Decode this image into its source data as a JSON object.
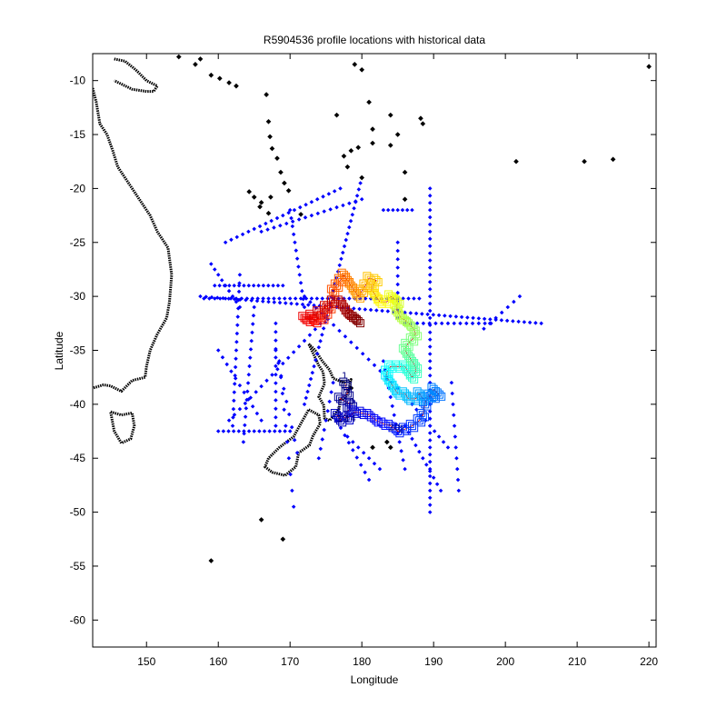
{
  "chart_data": {
    "type": "scatter",
    "title": "R5904536 profile locations with historical data",
    "xlabel": "Longitude",
    "ylabel": "Latitude",
    "xlim": [
      142.5,
      221
    ],
    "ylim": [
      -62.5,
      -7.5
    ],
    "x_ticks": [
      150,
      160,
      170,
      180,
      190,
      200,
      210,
      220
    ],
    "y_ticks": [
      -10,
      -15,
      -20,
      -25,
      -30,
      -35,
      -40,
      -45,
      -50,
      -55,
      -60
    ],
    "grid": false,
    "legend": "none",
    "colors": {
      "coast": "#000000",
      "historical": "#0000ff",
      "track_start": "#00008f",
      "track_end": "#800000"
    },
    "coastline": [
      [
        [
          145.5,
          -8
        ],
        [
          147,
          -8.2
        ],
        [
          148.5,
          -9
        ],
        [
          150,
          -10
        ],
        [
          151.5,
          -10.5
        ],
        [
          151,
          -11
        ],
        [
          150,
          -11
        ],
        [
          148,
          -10.8
        ],
        [
          145.5,
          -10
        ]
      ],
      [
        [
          142.5,
          -10.7
        ],
        [
          143,
          -12
        ],
        [
          143.5,
          -14
        ],
        [
          144.5,
          -15
        ],
        [
          145.3,
          -16.5
        ],
        [
          146,
          -18
        ],
        [
          147.5,
          -19.5
        ],
        [
          149,
          -21
        ],
        [
          150.5,
          -22.5
        ],
        [
          151.5,
          -24
        ],
        [
          153,
          -25.5
        ],
        [
          153.5,
          -28
        ],
        [
          153.2,
          -30.5
        ],
        [
          152.8,
          -32
        ],
        [
          151.5,
          -33.5
        ],
        [
          150.5,
          -35
        ],
        [
          150,
          -36.5
        ],
        [
          149.8,
          -37.5
        ],
        [
          148,
          -37.8
        ],
        [
          146.5,
          -38.8
        ],
        [
          145,
          -38.3
        ],
        [
          144,
          -38.2
        ],
        [
          142.5,
          -38.5
        ]
      ],
      [
        [
          145,
          -40.7
        ],
        [
          146.5,
          -41
        ],
        [
          148,
          -40.8
        ],
        [
          148.3,
          -42
        ],
        [
          147.8,
          -43.2
        ],
        [
          146.5,
          -43.6
        ],
        [
          145.5,
          -42.5
        ],
        [
          145,
          -40.7
        ]
      ],
      [
        [
          172.6,
          -34.4
        ],
        [
          173.5,
          -35
        ],
        [
          174.5,
          -36
        ],
        [
          175.5,
          -36.8
        ],
        [
          176,
          -37.6
        ],
        [
          177.5,
          -38
        ],
        [
          178.5,
          -37.7
        ],
        [
          178,
          -39.2
        ],
        [
          177,
          -39.6
        ],
        [
          176.8,
          -40.5
        ],
        [
          175.5,
          -41.5
        ],
        [
          174.8,
          -41.3
        ],
        [
          174.7,
          -40.1
        ],
        [
          174,
          -39.3
        ],
        [
          174.8,
          -38.1
        ],
        [
          174.6,
          -37
        ],
        [
          174,
          -36.4
        ],
        [
          172.6,
          -34.4
        ]
      ],
      [
        [
          172.6,
          -40.5
        ],
        [
          174,
          -41
        ],
        [
          174.2,
          -41.8
        ],
        [
          173.2,
          -42.9
        ],
        [
          172.7,
          -43.8
        ],
        [
          171.2,
          -44.5
        ],
        [
          170.8,
          -45.8
        ],
        [
          169.3,
          -46.6
        ],
        [
          167.5,
          -46.3
        ],
        [
          166.5,
          -45.8
        ],
        [
          167,
          -45
        ],
        [
          168.5,
          -44
        ],
        [
          170.5,
          -43
        ],
        [
          171.5,
          -41.8
        ],
        [
          172.6,
          -40.5
        ]
      ]
    ],
    "islands": [
      [
        159,
        -9.5
      ],
      [
        160.2,
        -9.8
      ],
      [
        161.5,
        -10.2
      ],
      [
        157.5,
        -8
      ],
      [
        156.8,
        -8.5
      ],
      [
        154.5,
        -7.8
      ],
      [
        162.5,
        -10.5
      ],
      [
        166.7,
        -11.3
      ],
      [
        167,
        -13.8
      ],
      [
        167.2,
        -15.2
      ],
      [
        167.5,
        -16.3
      ],
      [
        168.2,
        -17.2
      ],
      [
        168.7,
        -18.5
      ],
      [
        169.2,
        -19.5
      ],
      [
        169.8,
        -20.2
      ],
      [
        167.3,
        -20.8
      ],
      [
        166,
        -21.3
      ],
      [
        165,
        -20.8
      ],
      [
        164.3,
        -20.3
      ],
      [
        165.8,
        -21.7
      ],
      [
        167,
        -22.3
      ],
      [
        171.5,
        -22.4
      ],
      [
        177.5,
        -17
      ],
      [
        178.5,
        -16.5
      ],
      [
        179.5,
        -16.2
      ],
      [
        178,
        -18
      ],
      [
        180,
        -19
      ],
      [
        181.5,
        -15.8
      ],
      [
        184,
        -16
      ],
      [
        185,
        -15
      ],
      [
        186,
        -18.5
      ],
      [
        186,
        -21
      ],
      [
        188.5,
        -14
      ],
      [
        188.2,
        -13.5
      ],
      [
        184,
        -13.2
      ],
      [
        176.5,
        -13.2
      ],
      [
        181,
        -12
      ],
      [
        181.5,
        -14.5
      ],
      [
        179,
        -8.5
      ],
      [
        180,
        -9
      ],
      [
        201.5,
        -17.5
      ],
      [
        211,
        -17.5
      ],
      [
        215,
        -17.3
      ],
      [
        220,
        -8.7
      ],
      [
        178.5,
        -38.5
      ],
      [
        181.5,
        -44
      ],
      [
        184,
        -44
      ],
      [
        183.5,
        -43.5
      ],
      [
        166,
        -50.7
      ],
      [
        169,
        -52.5
      ],
      [
        159,
        -54.5
      ]
    ],
    "historical_lines": [
      {
        "from": [
          157.5,
          -30
        ],
        "to": [
          205,
          -32.5
        ],
        "n": 60
      },
      {
        "from": [
          158,
          -30.2
        ],
        "to": [
          188,
          -30.2
        ],
        "n": 40
      },
      {
        "from": [
          179.8,
          -19.5
        ],
        "to": [
          172,
          -40
        ],
        "n": 35
      },
      {
        "from": [
          189.5,
          -20
        ],
        "to": [
          189.5,
          -50
        ],
        "n": 45
      },
      {
        "from": [
          161,
          -25
        ],
        "to": [
          177,
          -20
        ],
        "n": 20
      },
      {
        "from": [
          163,
          -28
        ],
        "to": [
          162,
          -42
        ],
        "n": 18
      },
      {
        "from": [
          165,
          -31
        ],
        "to": [
          163.5,
          -43.5
        ],
        "n": 16
      },
      {
        "from": [
          168,
          -32.5
        ],
        "to": [
          168,
          -42
        ],
        "n": 12
      },
      {
        "from": [
          170,
          -22
        ],
        "to": [
          172,
          -31
        ],
        "n": 12
      },
      {
        "from": [
          160,
          -35
        ],
        "to": [
          166,
          -41.5
        ],
        "n": 10
      },
      {
        "from": [
          161.5,
          -41.5
        ],
        "to": [
          175,
          -32
        ],
        "n": 18
      },
      {
        "from": [
          160,
          -42.5
        ],
        "to": [
          170,
          -42.5
        ],
        "n": 14
      },
      {
        "from": [
          159,
          -27
        ],
        "to": [
          163,
          -31
        ],
        "n": 8
      },
      {
        "from": [
          159.5,
          -29
        ],
        "to": [
          169,
          -29
        ],
        "n": 14
      },
      {
        "from": [
          166,
          -24
        ],
        "to": [
          180,
          -21
        ],
        "n": 16
      },
      {
        "from": [
          172,
          -30
        ],
        "to": [
          185,
          -38.5
        ],
        "n": 16
      },
      {
        "from": [
          183,
          -22
        ],
        "to": [
          187,
          -22
        ],
        "n": 6
      },
      {
        "from": [
          185,
          -25
        ],
        "to": [
          185,
          -32
        ],
        "n": 9
      },
      {
        "from": [
          186,
          -32.5
        ],
        "to": [
          198,
          -32.5
        ],
        "n": 14
      },
      {
        "from": [
          187,
          -40
        ],
        "to": [
          192,
          -44
        ],
        "n": 8
      },
      {
        "from": [
          183,
          -36
        ],
        "to": [
          186,
          -46
        ],
        "n": 12
      },
      {
        "from": [
          186,
          -42
        ],
        "to": [
          191,
          -48
        ],
        "n": 10
      },
      {
        "from": [
          192.5,
          -38
        ],
        "to": [
          193.5,
          -48
        ],
        "n": 10
      },
      {
        "from": [
          176.5,
          -41.5
        ],
        "to": [
          181,
          -47
        ],
        "n": 8
      },
      {
        "from": [
          178,
          -43
        ],
        "to": [
          182.5,
          -46
        ],
        "n": 6
      },
      {
        "from": [
          176,
          -38
        ],
        "to": [
          174,
          -45
        ],
        "n": 8
      },
      {
        "from": [
          197,
          -33
        ],
        "to": [
          202,
          -30
        ],
        "n": 6
      },
      {
        "from": [
          168,
          -35
        ],
        "to": [
          171,
          -44.5
        ],
        "n": 8
      },
      {
        "from": [
          168.5,
          -36
        ],
        "to": [
          170.5,
          -49.5
        ],
        "n": 9
      }
    ],
    "track": [
      [
        177.7,
        -38.1
      ],
      [
        178,
        -39
      ],
      [
        177,
        -39.5
      ],
      [
        178.5,
        -40
      ],
      [
        178.2,
        -40.5
      ],
      [
        177,
        -41.5
      ],
      [
        176.5,
        -41
      ],
      [
        178,
        -41.3
      ],
      [
        179,
        -40.7
      ],
      [
        180,
        -40.8
      ],
      [
        181,
        -41
      ],
      [
        182,
        -41.5
      ],
      [
        183,
        -41.8
      ],
      [
        184,
        -42
      ],
      [
        185,
        -42.5
      ],
      [
        186,
        -42.3
      ],
      [
        187,
        -42
      ],
      [
        188,
        -41.5
      ],
      [
        188.5,
        -41
      ],
      [
        188.8,
        -40
      ],
      [
        189,
        -39.5
      ],
      [
        190,
        -39.3
      ],
      [
        190.8,
        -39.1
      ],
      [
        190,
        -38.6
      ],
      [
        189.5,
        -39.2
      ],
      [
        188.5,
        -39.5
      ],
      [
        188,
        -39
      ],
      [
        187.5,
        -39.5
      ],
      [
        186.5,
        -39.5
      ],
      [
        186,
        -39
      ],
      [
        185,
        -39
      ],
      [
        184.5,
        -38.5
      ],
      [
        184,
        -38
      ],
      [
        183.5,
        -37.5
      ],
      [
        183.5,
        -37
      ],
      [
        184,
        -36.5
      ],
      [
        185,
        -36.5
      ],
      [
        186,
        -36.5
      ],
      [
        186.5,
        -37
      ],
      [
        187,
        -37.5
      ],
      [
        187.5,
        -37
      ],
      [
        187.5,
        -36.5
      ],
      [
        187,
        -36
      ],
      [
        186.5,
        -35.5
      ],
      [
        186,
        -35
      ],
      [
        186.3,
        -34.5
      ],
      [
        187,
        -34
      ],
      [
        187.5,
        -33.5
      ],
      [
        187.2,
        -33
      ],
      [
        186.5,
        -32.5
      ],
      [
        186,
        -32.2
      ],
      [
        185.5,
        -32
      ],
      [
        185,
        -31.5
      ],
      [
        184.8,
        -31
      ],
      [
        185,
        -30.5
      ],
      [
        184.5,
        -30.2
      ],
      [
        184,
        -30
      ],
      [
        183.5,
        -30.5
      ],
      [
        182.5,
        -30.5
      ],
      [
        182,
        -30
      ],
      [
        181.5,
        -29.5
      ],
      [
        181.5,
        -29
      ],
      [
        182,
        -28.5
      ],
      [
        181,
        -28.3
      ],
      [
        180.5,
        -29
      ],
      [
        180,
        -29.5
      ],
      [
        179.5,
        -30
      ],
      [
        179,
        -29.5
      ],
      [
        178.5,
        -29
      ],
      [
        178,
        -28.5
      ],
      [
        177.5,
        -28
      ],
      [
        177,
        -28.5
      ],
      [
        176.5,
        -29
      ],
      [
        176,
        -29.5
      ],
      [
        176,
        -30.5
      ],
      [
        175.5,
        -31
      ],
      [
        175,
        -31.5
      ],
      [
        174.5,
        -32
      ],
      [
        174,
        -32
      ],
      [
        173.5,
        -32.3
      ],
      [
        173,
        -32
      ],
      [
        172.5,
        -32.2
      ],
      [
        172,
        -32
      ],
      [
        173,
        -31.8
      ],
      [
        174,
        -31.5
      ],
      [
        175,
        -31
      ],
      [
        176,
        -30.5
      ],
      [
        177,
        -30.5
      ],
      [
        177.5,
        -31
      ],
      [
        178,
        -31.5
      ],
      [
        178.5,
        -31.8
      ],
      [
        179,
        -32
      ],
      [
        179.5,
        -32.3
      ]
    ],
    "track_labels": [
      {
        "text": "1",
        "lon": 177.6,
        "lat": -37.6
      },
      {
        "text": "10",
        "lon": 178.2,
        "lat": -40.0
      },
      {
        "text": "1",
        "lon": 176.8,
        "lat": -40.8
      },
      {
        "text": "12",
        "lon": 177.3,
        "lat": -41.6
      },
      {
        "text": "14",
        "lon": 178.4,
        "lat": -41.6
      },
      {
        "text": "20",
        "lon": 184.5,
        "lat": -42.4
      },
      {
        "text": "2",
        "lon": 185.5,
        "lat": -42.6
      }
    ]
  }
}
